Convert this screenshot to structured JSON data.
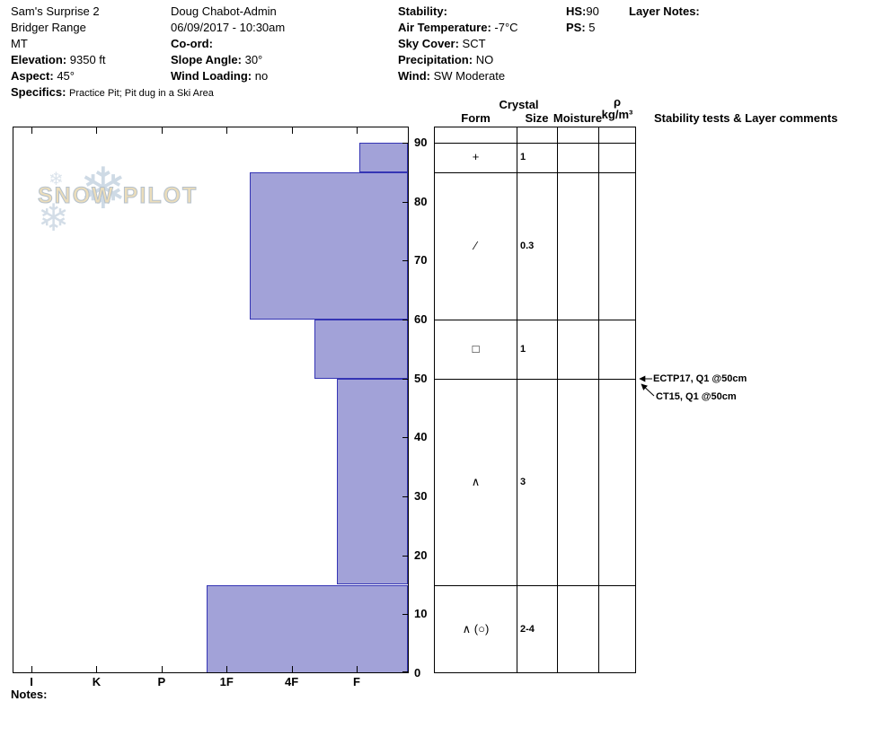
{
  "page": {
    "notes_label": "Notes:"
  },
  "header": {
    "location": {
      "pit_name": "Sam's Surprise 2",
      "range": "Bridger Range",
      "state": "MT",
      "elevation_label": "Elevation:",
      "elevation_value": "9350 ft",
      "aspect_label": "Aspect:",
      "aspect_value": "45°",
      "specifics_label": "Specifics:",
      "specifics_value": "Practice Pit; Pit dug in a Ski Area"
    },
    "observation": {
      "observer": "Doug Chabot-Admin",
      "datetime": "06/09/2017 - 10:30am",
      "coord_label": "Co-ord:",
      "slope_angle_label": "Slope Angle:",
      "slope_angle_value": "30°",
      "wind_loading_label": "Wind Loading:",
      "wind_loading_value": "no"
    },
    "weather": {
      "stability_label": "Stability:",
      "air_temp_label": "Air Temperature:",
      "air_temp_value": "-7°C",
      "sky_cover_label": "Sky Cover:",
      "sky_cover_value": "SCT",
      "precipitation_label": "Precipitation:",
      "precipitation_value": "NO",
      "wind_label": "Wind:",
      "wind_value": "SW Moderate"
    },
    "snowpack": {
      "hs_label": "HS:",
      "hs_value": "90",
      "ps_label": "PS:",
      "ps_value": "5"
    },
    "layer_notes_label": "Layer Notes:"
  },
  "watermark": {
    "text": "SNOW PILOT",
    "flake_glyph": "❄"
  },
  "chart_data": {
    "type": "bar",
    "title": "Snow pit hardness profile",
    "x_axis_meaning": "hand hardness (hardest I at left, softest F at right)",
    "y_axis_meaning": "height above ground, cm",
    "x_ticks": [
      "I",
      "K",
      "P",
      "1F",
      "4F",
      "F"
    ],
    "y_ticks": [
      0,
      10,
      20,
      30,
      40,
      50,
      60,
      70,
      80,
      90
    ],
    "ylim": [
      0,
      90
    ],
    "snow_height_cm": 90,
    "bar_fill": "#a2a2d8",
    "bar_stroke": "#3434b4",
    "layers": [
      {
        "top_cm": 90,
        "bottom_cm": 85,
        "hardness": "F",
        "hardness_x": 5.04,
        "form": "+",
        "size_mm": "1"
      },
      {
        "top_cm": 85,
        "bottom_cm": 60,
        "hardness": "1F+",
        "hardness_x": 3.36,
        "form": "∕",
        "size_mm": "0.3"
      },
      {
        "top_cm": 60,
        "bottom_cm": 50,
        "hardness": "4F",
        "hardness_x": 4.35,
        "form": "□",
        "size_mm": "1"
      },
      {
        "top_cm": 50,
        "bottom_cm": 15,
        "hardness": "4F+",
        "hardness_x": 4.7,
        "form": "∧",
        "size_mm": "3"
      },
      {
        "top_cm": 15,
        "bottom_cm": 0,
        "hardness": "P+",
        "hardness_x": 2.69,
        "form": "∧ (○)",
        "size_mm": "2-4"
      }
    ]
  },
  "layer_table": {
    "headers": {
      "crystal": "Crystal",
      "form": "Form",
      "size": "Size",
      "moisture": "Moisture",
      "density_symbol": "ρ",
      "density_unit": "kg/m³",
      "comments": "Stability tests & Layer comments"
    }
  },
  "stability_tests": [
    {
      "label": "ECTP17, Q1 @50cm",
      "depth_cm": 50
    },
    {
      "label": "CT15, Q1 @50cm",
      "depth_cm": 50
    }
  ]
}
